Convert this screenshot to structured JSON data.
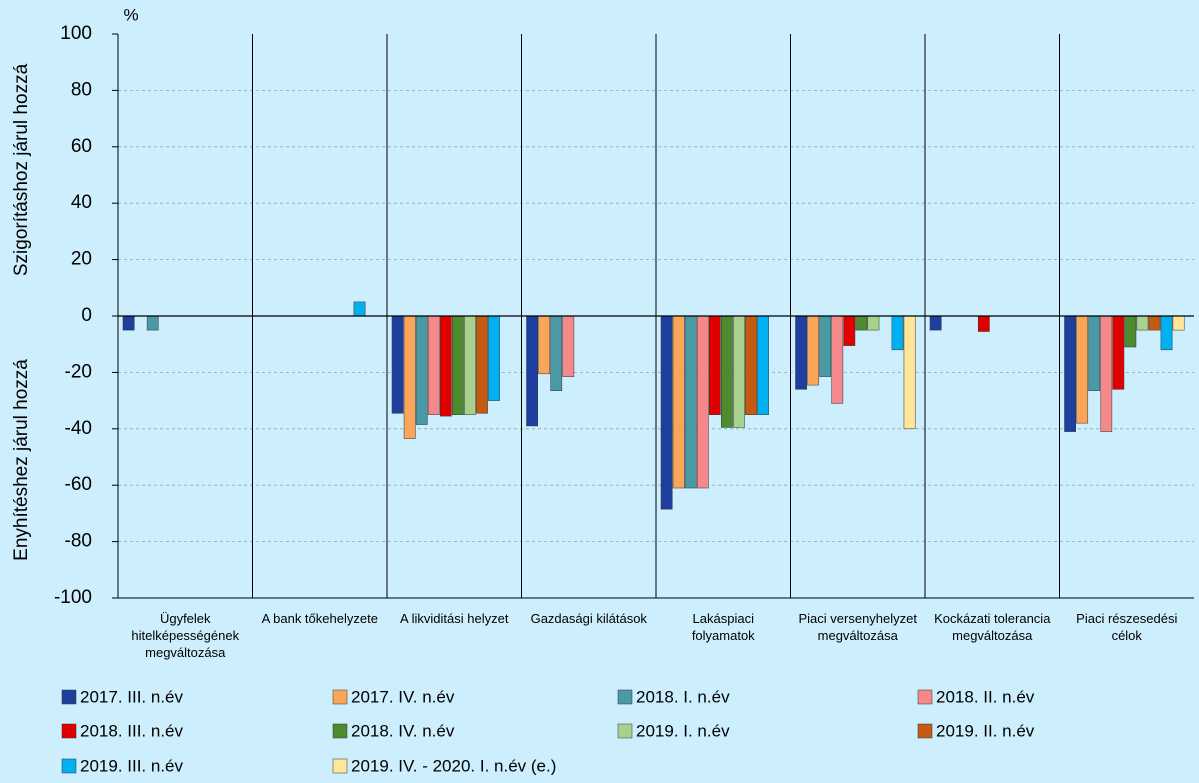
{
  "chart_data": {
    "type": "bar",
    "unit_label": "%",
    "y_label_upper": "Szigorításhoz járul hozzá",
    "y_label_lower": "Enyhítéshez járul hozzá",
    "categories": [
      "Ügyfelek hitelképességének megváltozása",
      "A bank tőkehelyzete",
      "A likviditási helyzet",
      "Gazdasági kilátások",
      "Lakáspiaci folyamatok",
      "Piaci versenyhelyzet megváltozása",
      "Kockázati tolerancia megváltozása",
      "Piaci részesedési célok"
    ],
    "series": [
      {
        "name": "2017. III. n.év",
        "color": "#1f3f9f",
        "values": [
          -5,
          0,
          -34.5,
          -39,
          -68.5,
          -26,
          -5,
          -41
        ]
      },
      {
        "name": "2017. IV. n.év",
        "color": "#f9a65a",
        "values": [
          0,
          0,
          -43.5,
          -20.5,
          -61,
          -24.5,
          0,
          -38
        ]
      },
      {
        "name": "2018. I. n.év",
        "color": "#4a9aa6",
        "values": [
          -5,
          0,
          -38.5,
          -26.5,
          -61,
          -21.5,
          0,
          -26.5
        ]
      },
      {
        "name": "2018. II. n.év",
        "color": "#f4888a",
        "values": [
          0,
          0,
          -35,
          -21.5,
          -61,
          -31,
          0,
          -41
        ]
      },
      {
        "name": "2018. III. n.év",
        "color": "#e00000",
        "values": [
          0,
          0,
          -35.5,
          0,
          -35,
          -10.5,
          -5.5,
          -26
        ]
      },
      {
        "name": "2018. IV. n.év",
        "color": "#4e8a2e",
        "values": [
          0,
          0,
          -35,
          0,
          -39.5,
          -5,
          0,
          -11
        ]
      },
      {
        "name": "2019. I. n.év",
        "color": "#a9d18e",
        "values": [
          0,
          0,
          -35,
          0,
          -39.5,
          -5,
          0,
          -5
        ]
      },
      {
        "name": "2019. II. n.év",
        "color": "#c55a11",
        "values": [
          0,
          0,
          -34.5,
          0,
          -35,
          0,
          0,
          -5
        ]
      },
      {
        "name": "2019. III. n.év",
        "color": "#00b0f0",
        "values": [
          0,
          5,
          -30,
          0,
          -35,
          -12,
          0,
          -12
        ]
      },
      {
        "name": "2019. IV. - 2020. I. n.év (e.)",
        "color": "#ffe699",
        "values": [
          0,
          0,
          0,
          0,
          0,
          -40,
          0,
          -5
        ]
      }
    ],
    "ylim": [
      -100,
      100
    ],
    "yticks": [
      -100,
      -80,
      -60,
      -40,
      -20,
      0,
      20,
      40,
      60,
      80,
      100
    ],
    "grid": true
  }
}
